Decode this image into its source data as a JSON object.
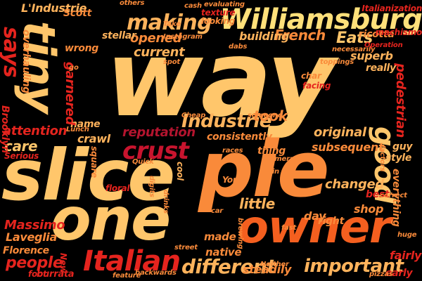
{
  "palette": {
    "background": "#000000",
    "light": "#FFC66B",
    "orange": "#F98A3A",
    "red": "#D81E1E",
    "crimson": "#B3142E"
  },
  "words": [
    {
      "text": "way",
      "color": "#FFC66B"
    },
    {
      "text": "pie",
      "color": "#F98A3A"
    },
    {
      "text": "slice",
      "color": "#FFC66B"
    },
    {
      "text": "one",
      "color": "#FFC66B"
    },
    {
      "text": "owner",
      "color": "#F45F1F"
    },
    {
      "text": "Williamsburg",
      "color": "#FFE07A"
    },
    {
      "text": "tiny",
      "color": "#FFC66B"
    },
    {
      "text": "making",
      "color": "#FFB35C"
    },
    {
      "text": "crust",
      "color": "#C8142E"
    },
    {
      "text": "Italian",
      "color": "#E5241E"
    },
    {
      "text": "says",
      "color": "#E5241E"
    },
    {
      "text": "good",
      "color": "#FFC66B"
    },
    {
      "text": "Industrie",
      "color": "#FFB35C"
    },
    {
      "text": "L'Industrie",
      "color": "#FFB35C"
    },
    {
      "text": "different",
      "color": "#FFB35C"
    },
    {
      "text": "important",
      "color": "#FFB35C"
    },
    {
      "text": "people",
      "color": "#E5241E"
    },
    {
      "text": "Eats",
      "color": "#FFC66B"
    },
    {
      "text": "French",
      "color": "#F98A3A"
    },
    {
      "text": "opened",
      "color": "#F98A3A"
    },
    {
      "text": "building",
      "color": "#FFB35C"
    },
    {
      "text": "current",
      "color": "#FFB35C"
    },
    {
      "text": "stellar",
      "color": "#FFB35C"
    },
    {
      "text": "original",
      "color": "#FFB35C"
    },
    {
      "text": "reputation",
      "color": "#B3142E"
    },
    {
      "text": "subsequent",
      "color": "#F98A3A"
    },
    {
      "text": "consistently",
      "color": "#F98A3A"
    },
    {
      "text": "took",
      "color": "#F98A3A"
    },
    {
      "text": "little",
      "color": "#FFB35C"
    },
    {
      "text": "changed",
      "color": "#FFB35C"
    },
    {
      "text": "shop",
      "color": "#F98A3A"
    },
    {
      "text": "best",
      "color": "#E5241E"
    },
    {
      "text": "fairly",
      "color": "#E5241E"
    },
    {
      "text": "early",
      "color": "#E5241E"
    },
    {
      "text": "steadily",
      "color": "#F98A3A"
    },
    {
      "text": "native",
      "color": "#F98A3A"
    },
    {
      "text": "made",
      "color": "#F98A3A"
    },
    {
      "text": "Massimo",
      "color": "#E5241E"
    },
    {
      "text": "Laveglia",
      "color": "#F98A3A"
    },
    {
      "text": "Florence",
      "color": "#F98A3A"
    },
    {
      "text": "burrata",
      "color": "#E5241E"
    },
    {
      "text": "attention",
      "color": "#E5241E"
    },
    {
      "text": "care",
      "color": "#FFC66B"
    },
    {
      "text": "name",
      "color": "#FFB35C"
    },
    {
      "text": "crawl",
      "color": "#FFB35C"
    },
    {
      "text": "Brooklyn",
      "color": "#E5241E"
    },
    {
      "text": "garnered",
      "color": "#E5241E"
    },
    {
      "text": "overhauling",
      "color": "#F98A3A"
    },
    {
      "text": "Scott",
      "color": "#F98A3A"
    },
    {
      "text": "wrong",
      "color": "#F98A3A"
    },
    {
      "text": "guy",
      "color": "#FFB35C"
    },
    {
      "text": "style",
      "color": "#FFB35C"
    },
    {
      "text": "everything",
      "color": "#F98A3A"
    },
    {
      "text": "pedestrian",
      "color": "#E5241E"
    },
    {
      "text": "superb",
      "color": "#FFB35C"
    },
    {
      "text": "really",
      "color": "#FFB35C"
    },
    {
      "text": "ricotta",
      "color": "#F98A3A"
    },
    {
      "text": "Italianization",
      "color": "#E5241E"
    },
    {
      "text": "day",
      "color": "#F98A3A"
    },
    {
      "text": "right",
      "color": "#F98A3A"
    },
    {
      "text": "York",
      "color": "#F98A3A"
    },
    {
      "text": "char",
      "color": "#F98A3A"
    },
    {
      "text": "facing",
      "color": "#E5241E"
    },
    {
      "text": "thing",
      "color": "#F98A3A"
    },
    {
      "text": "cool",
      "color": "#FFB35C"
    },
    {
      "text": "floral",
      "color": "#E5241E"
    },
    {
      "text": "square",
      "color": "#F98A3A"
    },
    {
      "text": "Serious",
      "color": "#E5241E"
    },
    {
      "text": "Lunch",
      "color": "#F98A3A"
    },
    {
      "text": "machismo",
      "color": "#E5241E"
    },
    {
      "text": "texture",
      "color": "#E5241E"
    },
    {
      "text": "looking",
      "color": "#F98A3A"
    },
    {
      "text": "evaluating",
      "color": "#F98A3A"
    },
    {
      "text": "cash",
      "color": "#F98A3A"
    },
    {
      "text": "Take",
      "color": "#F98A3A"
    },
    {
      "text": "Instagram",
      "color": "#F98A3A"
    },
    {
      "text": "dabs",
      "color": "#F98A3A"
    },
    {
      "text": "necessarily",
      "color": "#F98A3A"
    },
    {
      "text": "Operation",
      "color": "#E5241E"
    },
    {
      "text": "toppings",
      "color": "#F98A3A"
    },
    {
      "text": "spot",
      "color": "#F98A3A"
    },
    {
      "text": "Quick",
      "color": "#F98A3A"
    },
    {
      "text": "Cheap",
      "color": "#F98A3A"
    },
    {
      "text": "someone",
      "color": "#F98A3A"
    },
    {
      "text": "races",
      "color": "#F98A3A"
    },
    {
      "text": "camera",
      "color": "#F98A3A"
    },
    {
      "text": "factors",
      "color": "#F98A3A"
    },
    {
      "text": "correct",
      "color": "#F98A3A"
    },
    {
      "text": "huge",
      "color": "#F98A3A"
    },
    {
      "text": "Neither",
      "color": "#F98A3A"
    },
    {
      "text": "feature",
      "color": "#F98A3A"
    },
    {
      "text": "backwards",
      "color": "#F98A3A"
    },
    {
      "text": "street",
      "color": "#F98A3A"
    },
    {
      "text": "pizzas",
      "color": "#F98A3A"
    },
    {
      "text": "foot",
      "color": "#E5241E"
    },
    {
      "text": "New",
      "color": "#E5241E"
    },
    {
      "text": "Win",
      "color": "#F98A3A"
    },
    {
      "text": "go",
      "color": "#F98A3A"
    },
    {
      "text": "others",
      "color": "#F98A3A"
    },
    {
      "text": "fast",
      "color": "#F98A3A"
    },
    {
      "text": "car",
      "color": "#F98A3A"
    },
    {
      "text": "brewing",
      "color": "#F98A3A"
    },
    {
      "text": "digits",
      "color": "#F98A3A"
    },
    {
      "text": "drinks",
      "color": "#F98A3A"
    }
  ]
}
